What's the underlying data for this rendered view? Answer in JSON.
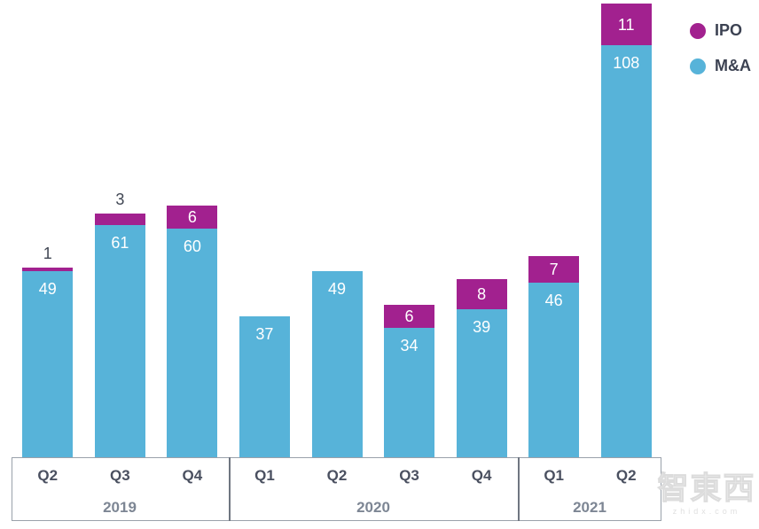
{
  "chart_data": {
    "type": "bar",
    "stacked": true,
    "title": "",
    "xlabel": "",
    "ylabel": "",
    "categories": [
      "Q2",
      "Q3",
      "Q4",
      "Q1",
      "Q2",
      "Q3",
      "Q4",
      "Q1",
      "Q2"
    ],
    "year_groups": [
      {
        "label": "2019",
        "quarters": 3
      },
      {
        "label": "2020",
        "quarters": 4
      },
      {
        "label": "2021",
        "quarters": 2
      }
    ],
    "series": [
      {
        "name": "M&A",
        "color": "#57b3d9",
        "values": [
          49,
          61,
          60,
          37,
          49,
          34,
          39,
          46,
          108
        ]
      },
      {
        "name": "IPO",
        "color": "#a2218f",
        "values": [
          1,
          3,
          6,
          0,
          0,
          6,
          8,
          7,
          11
        ]
      }
    ],
    "ylim": [
      0,
      119
    ],
    "grid": false,
    "value_labels": true,
    "legend_position": "top-right"
  },
  "legend": {
    "items": [
      {
        "label": "IPO",
        "color": "#a2218f"
      },
      {
        "label": "M&A",
        "color": "#57b3d9"
      }
    ]
  },
  "watermark": {
    "text": "智東西",
    "subtext": "zhidx.com"
  },
  "colors": {
    "mna": "#57b3d9",
    "ipo": "#a2218f",
    "bar_label": "#ffffff",
    "above_bar_label": "#414754",
    "quarter_text": "#4a5060",
    "year_text": "#7d8694",
    "box_border": "#9aa1ab",
    "divider": "#6f7681",
    "background": "#ffffff"
  }
}
